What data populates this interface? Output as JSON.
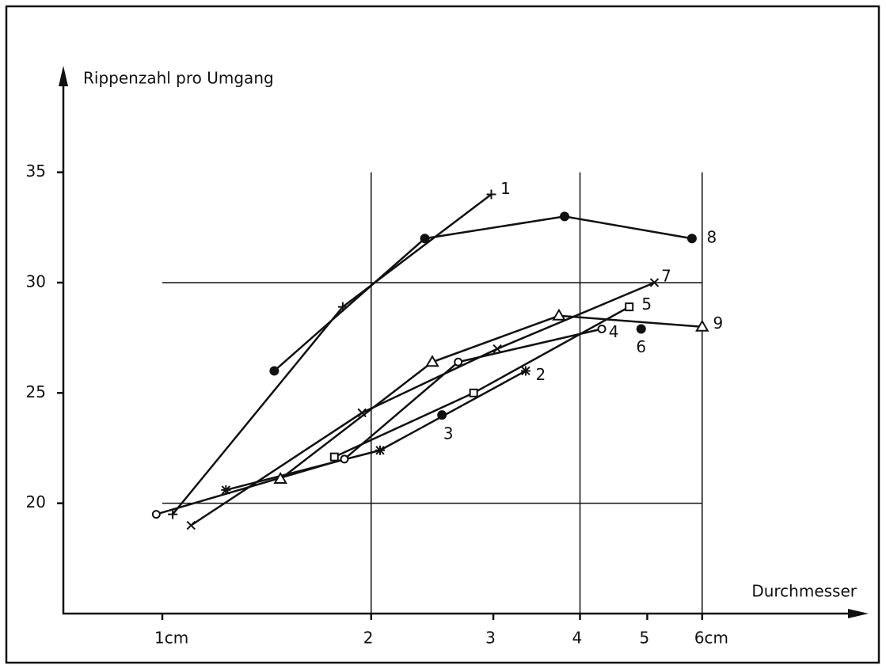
{
  "chart_data": {
    "type": "line",
    "y_label": "Rippenzahl pro Umgang",
    "x_label": "Durchmesser",
    "log_x": true,
    "xlim": [
      0.72,
      10.1
    ],
    "ylim": [
      15,
      39.4
    ],
    "xticks": [
      {
        "value": 1,
        "label": "1cm"
      },
      2,
      3,
      4,
      5,
      {
        "value": 6,
        "label": "6cm"
      }
    ],
    "yticks": [
      20,
      25,
      30,
      35
    ],
    "xgrid": [
      2,
      4,
      6
    ],
    "ygrid": [
      20,
      30
    ],
    "color": "#111111",
    "series": [
      {
        "name": "1",
        "marker": "plus",
        "x": [
          1.035,
          1.82,
          2.98
        ],
        "values": [
          19.5,
          28.9,
          34.0
        ]
      },
      {
        "name": "2",
        "marker": "asterisk",
        "x": [
          1.235,
          2.06,
          3.34
        ],
        "values": [
          20.6,
          22.4,
          26.0
        ]
      },
      {
        "name": "3",
        "marker": "dot",
        "x": [
          2.53
        ],
        "values": [
          24.0
        ]
      },
      {
        "name": "4",
        "marker": "circle",
        "x": [
          0.98,
          1.83,
          2.67,
          4.3
        ],
        "values": [
          19.5,
          22.0,
          26.4,
          27.9
        ]
      },
      {
        "name": "5",
        "marker": "square",
        "x": [
          1.77,
          2.81,
          4.71
        ],
        "values": [
          22.1,
          25.0,
          28.9
        ]
      },
      {
        "name": "6",
        "marker": "dot",
        "x": [
          4.9
        ],
        "values": [
          27.9
        ]
      },
      {
        "name": "7",
        "marker": "x",
        "x": [
          1.1,
          1.94,
          3.04,
          5.12
        ],
        "values": [
          19.0,
          24.1,
          27.0,
          30.0
        ]
      },
      {
        "name": "8",
        "marker": "dot",
        "x": [
          1.45,
          2.39,
          3.8,
          5.8
        ],
        "values": [
          26.0,
          32.0,
          33.0,
          32.0
        ]
      },
      {
        "name": "9",
        "marker": "triangle",
        "x": [
          1.48,
          2.45,
          3.73,
          6.0
        ],
        "values": [
          21.1,
          26.4,
          28.5,
          28.0
        ]
      }
    ]
  }
}
